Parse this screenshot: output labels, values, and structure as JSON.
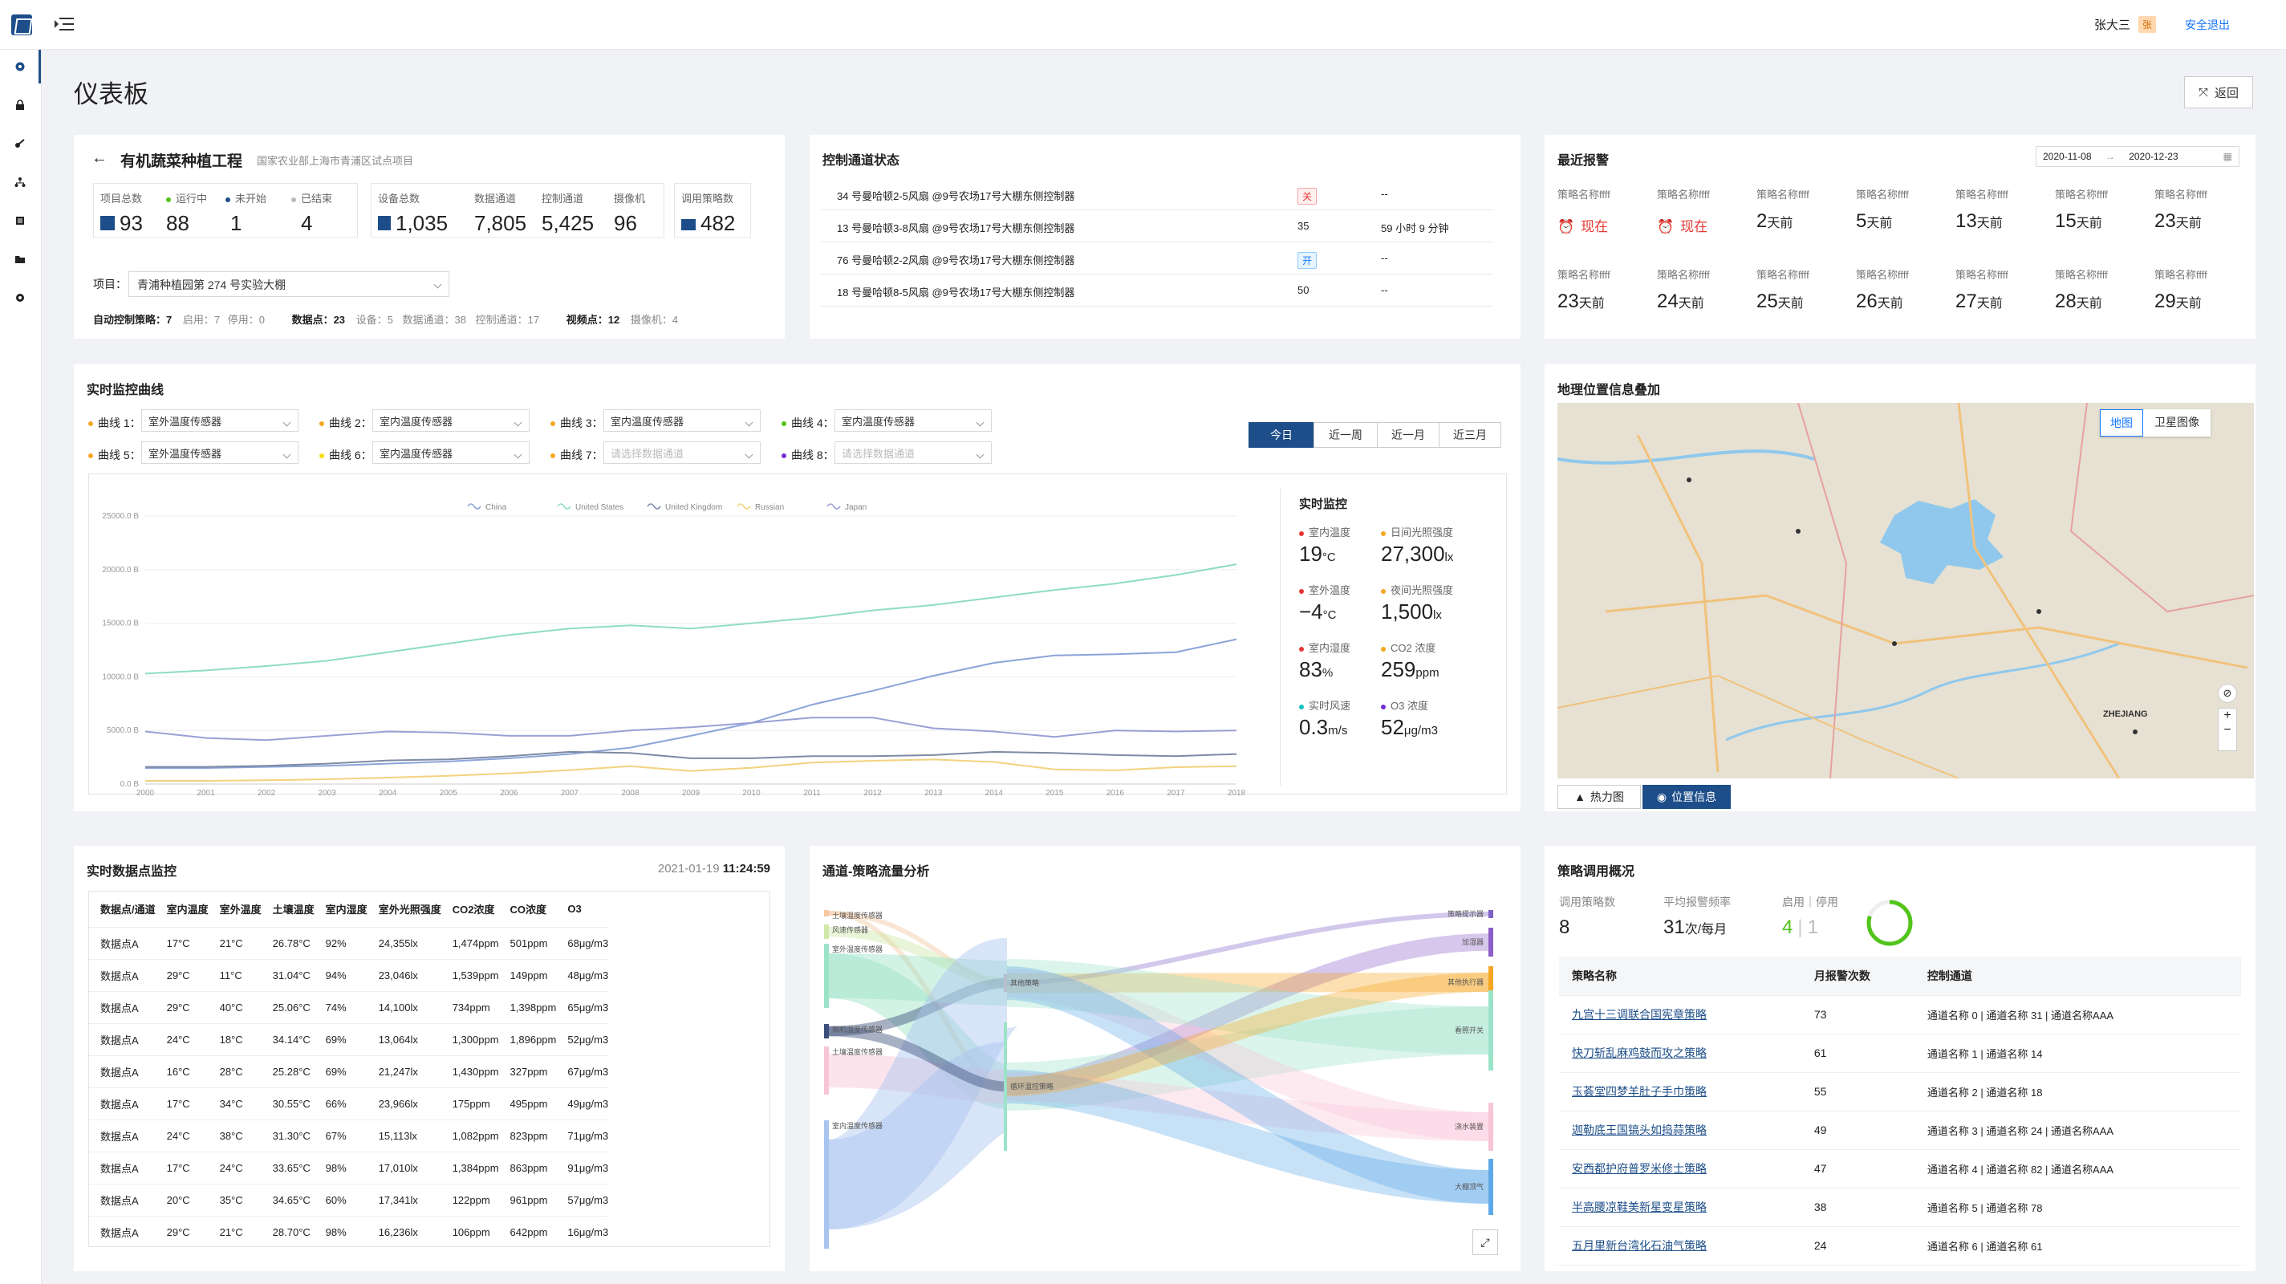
{
  "header": {
    "user_name": "张大三",
    "avatar": "张",
    "logout": "安全退出"
  },
  "sidebar": {
    "items": [
      "dashboard-icon",
      "lock-icon",
      "key-icon",
      "org-icon",
      "list-icon",
      "folder-icon",
      "gear-icon"
    ]
  },
  "page": {
    "title": "仪表板",
    "back_label": "返回"
  },
  "project": {
    "title": "有机蔬菜种植工程",
    "subtitle": "国家农业部上海市青浦区试点项目",
    "stats": {
      "total_label": "项目总数",
      "total": "93",
      "running_label": "运行中",
      "running": "88",
      "notstarted_label": "未开始",
      "notstarted": "1",
      "ended_label": "已结束",
      "ended": "4",
      "devices_label": "设备总数",
      "devices": "1,035",
      "data_ch_label": "数据通道",
      "data_ch": "7,805",
      "ctrl_ch_label": "控制通道",
      "ctrl_ch": "5,425",
      "camera_label": "摄像机",
      "camera": "96",
      "strategy_label": "调用策略数",
      "strategy": "482"
    },
    "project_select_label": "项目：",
    "project_select_value": "青浦种植园第 274 号实验大棚",
    "footer": {
      "auto_label": "自动控制策略：7",
      "enabled": "启用：7",
      "disabled": "停用：0",
      "points_label": "数据点：23",
      "devices": "设备：5",
      "data_ch": "数据通道：38",
      "ctrl_ch": "控制通道：17",
      "view_label": "视频点：12",
      "cameras": "摄像机：4"
    }
  },
  "control": {
    "title": "控制通道状态",
    "rows": [
      {
        "name": "34 号曼哈顿2-5风扇 @9号农场17号大棚东侧控制器",
        "status": "关",
        "status_type": "off",
        "extra": "--"
      },
      {
        "name": "13 号曼哈顿3-8风扇 @9号农场17号大棚东侧控制器",
        "status": "35",
        "status_type": "num",
        "extra": "59 小时 9 分钟"
      },
      {
        "name": "76 号曼哈顿2-2风扇 @9号农场17号大棚东侧控制器",
        "status": "开",
        "status_type": "on",
        "extra": "--"
      },
      {
        "name": "18 号曼哈顿8-5风扇 @9号农场17号大棚东侧控制器",
        "status": "50",
        "status_type": "num",
        "extra": "--"
      }
    ]
  },
  "alerts": {
    "title": "最近报警",
    "date_from": "2020-11-08",
    "date_arrow": "→",
    "date_to": "2020-12-23",
    "items": [
      {
        "name": "策略名称ffff",
        "num": "",
        "unit": "现在",
        "red": true
      },
      {
        "name": "策略名称ffff",
        "num": "",
        "unit": "现在",
        "red": true
      },
      {
        "name": "策略名称ffff",
        "num": "2",
        "unit": "天前",
        "red": false
      },
      {
        "name": "策略名称ffff",
        "num": "5",
        "unit": "天前",
        "red": false
      },
      {
        "name": "策略名称ffff",
        "num": "13",
        "unit": "天前",
        "red": false
      },
      {
        "name": "策略名称ffff",
        "num": "15",
        "unit": "天前",
        "red": false
      },
      {
        "name": "策略名称ffff",
        "num": "23",
        "unit": "天前",
        "red": false
      },
      {
        "name": "策略名称ffff",
        "num": "23",
        "unit": "天前",
        "red": false
      },
      {
        "name": "策略名称ffff",
        "num": "24",
        "unit": "天前",
        "red": false
      },
      {
        "name": "策略名称ffff",
        "num": "25",
        "unit": "天前",
        "red": false
      },
      {
        "name": "策略名称ffff",
        "num": "26",
        "unit": "天前",
        "red": false
      },
      {
        "name": "策略名称ffff",
        "num": "27",
        "unit": "天前",
        "red": false
      },
      {
        "name": "策略名称ffff",
        "num": "28",
        "unit": "天前",
        "red": false
      },
      {
        "name": "策略名称ffff",
        "num": "29",
        "unit": "天前",
        "red": false
      }
    ]
  },
  "monitor": {
    "title": "实时监控曲线",
    "curves": [
      {
        "label": "曲线 1：",
        "value": "室外温度传感器",
        "color": "#f5a623",
        "ph": false
      },
      {
        "label": "曲线 2：",
        "value": "室内温度传感器",
        "color": "#f5a623",
        "ph": false
      },
      {
        "label": "曲线 3：",
        "value": "室内温度传感器",
        "color": "#f5a623",
        "ph": false
      },
      {
        "label": "曲线 4：",
        "value": "室内温度传感器",
        "color": "#52c41a",
        "ph": false
      },
      {
        "label": "曲线 5：",
        "value": "室外温度传感器",
        "color": "#f5a623",
        "ph": false
      },
      {
        "label": "曲线 6：",
        "value": "室内温度传感器",
        "color": "#fadb14",
        "ph": false
      },
      {
        "label": "曲线 7：",
        "value": "请选择数据通道",
        "color": "#f5a623",
        "ph": true
      },
      {
        "label": "曲线 8：",
        "value": "请选择数据通道",
        "color": "#722ed1",
        "ph": true
      }
    ],
    "tabs": [
      "今日",
      "近一周",
      "近一月",
      "近三月"
    ],
    "realtime": {
      "title": "实时监控",
      "items": [
        {
          "label": "室内温度",
          "value": "19",
          "unit": "°C",
          "color": "#e53935"
        },
        {
          "label": "日间光照强度",
          "value": "27,300",
          "unit": "lx",
          "color": "#f5a623"
        },
        {
          "label": "室外温度",
          "value": "−4",
          "unit": "°C",
          "color": "#e53935"
        },
        {
          "label": "夜间光照强度",
          "value": "1,500",
          "unit": "lx",
          "color": "#f5a623"
        },
        {
          "label": "室内湿度",
          "value": "83",
          "unit": "%",
          "color": "#e53935"
        },
        {
          "label": "CO2 浓度",
          "value": "259",
          "unit": "ppm",
          "color": "#f5a623"
        },
        {
          "label": "实时风速",
          "value": "0.3",
          "unit": "m/s",
          "color": "#13c2c2"
        },
        {
          "label": "O3 浓度",
          "value": "52",
          "unit": "μg/m3",
          "color": "#722ed1"
        }
      ]
    }
  },
  "chart_data": {
    "type": "line",
    "x": [
      "2000",
      "2001",
      "2002",
      "2003",
      "2004",
      "2005",
      "2006",
      "2007",
      "2008",
      "2009",
      "2010",
      "2011",
      "2012",
      "2013",
      "2014",
      "2015",
      "2016",
      "2017",
      "2018"
    ],
    "ylim": [
      0,
      25000
    ],
    "yticks": [
      "0.0 B",
      "5000.0 B",
      "10000.0 B",
      "15000.0 B",
      "20000.0 B",
      "25000.0 B"
    ],
    "series": [
      {
        "name": "China",
        "color": "#8aa4d8",
        "values": [
          1500,
          1500,
          1600,
          1700,
          1900,
          2100,
          2400,
          2800,
          3400,
          4500,
          5700,
          7400,
          8700,
          10100,
          11300,
          12000,
          12100,
          12300,
          13500
        ]
      },
      {
        "name": "United States",
        "color": "#8fdcc4",
        "values": [
          10300,
          10600,
          11000,
          11500,
          12300,
          13100,
          13900,
          14500,
          14800,
          14500,
          15000,
          15500,
          16200,
          16700,
          17400,
          18100,
          18700,
          19500,
          20500
        ]
      },
      {
        "name": "United Kingdom",
        "color": "#7e8aa5",
        "values": [
          1600,
          1600,
          1700,
          1900,
          2200,
          2300,
          2600,
          3000,
          2900,
          2400,
          2400,
          2600,
          2600,
          2700,
          3000,
          2900,
          2700,
          2600,
          2800
        ]
      },
      {
        "name": "Russian",
        "color": "#f2d27e",
        "values": [
          300,
          300,
          350,
          450,
          600,
          770,
          990,
          1300,
          1660,
          1220,
          1520,
          2000,
          2170,
          2290,
          2060,
          1360,
          1280,
          1570,
          1660
        ]
      },
      {
        "name": "Japan",
        "color": "#9aa0d6",
        "values": [
          4900,
          4300,
          4100,
          4500,
          4900,
          4800,
          4500,
          4500,
          5000,
          5300,
          5700,
          6200,
          6200,
          5200,
          4900,
          4400,
          5000,
          4900,
          5000
        ]
      }
    ]
  },
  "geo": {
    "title": "地理位置信息叠加",
    "map_tab": "地图",
    "sat_tab": "卫星图像",
    "heat_btn": "热力图",
    "loc_btn": "位置信息",
    "place_label": "ZHEJIANG"
  },
  "datapoints": {
    "title": "实时数据点监控",
    "date": "2021-01-19",
    "time": "11:24:59",
    "headers": [
      "数据点/通道",
      "室内温度",
      "室外温度",
      "土壤温度",
      "室内湿度",
      "室外光照强度",
      "CO2浓度",
      "CO浓度",
      "O3"
    ],
    "rows": [
      [
        "数据点A",
        "17°C",
        "21°C",
        "26.78°C",
        "92%",
        "24,355lx",
        "1,474ppm",
        "501ppm",
        "68μg/m3"
      ],
      [
        "数据点A",
        "29°C",
        "11°C",
        "31.04°C",
        "94%",
        "23,046lx",
        "1,539ppm",
        "149ppm",
        "48μg/m3"
      ],
      [
        "数据点A",
        "29°C",
        "40°C",
        "25.06°C",
        "74%",
        "14,100lx",
        "734ppm",
        "1,398ppm",
        "65μg/m3"
      ],
      [
        "数据点A",
        "24°C",
        "18°C",
        "34.14°C",
        "69%",
        "13,064lx",
        "1,300ppm",
        "1,896ppm",
        "52μg/m3"
      ],
      [
        "数据点A",
        "16°C",
        "28°C",
        "25.28°C",
        "69%",
        "21,247lx",
        "1,430ppm",
        "327ppm",
        "67μg/m3"
      ],
      [
        "数据点A",
        "17°C",
        "34°C",
        "30.55°C",
        "66%",
        "23,966lx",
        "175ppm",
        "495ppm",
        "49μg/m3"
      ],
      [
        "数据点A",
        "24°C",
        "38°C",
        "31.30°C",
        "67%",
        "15,113lx",
        "1,082ppm",
        "823ppm",
        "71μg/m3"
      ],
      [
        "数据点A",
        "17°C",
        "24°C",
        "33.65°C",
        "98%",
        "17,010lx",
        "1,384ppm",
        "863ppm",
        "91μg/m3"
      ],
      [
        "数据点A",
        "20°C",
        "35°C",
        "34.65°C",
        "60%",
        "17,341lx",
        "122ppm",
        "961ppm",
        "57μg/m3"
      ],
      [
        "数据点A",
        "29°C",
        "21°C",
        "28.70°C",
        "98%",
        "16,236lx",
        "106ppm",
        "642ppm",
        "16μg/m3"
      ]
    ]
  },
  "sankey": {
    "title": "通道-策略流量分析",
    "left_nodes": [
      "土壤温度传感器",
      "风速传感器",
      "室外温度传感器",
      "相机温度传感器",
      "土壤温度传感器",
      "室内温度传感器"
    ],
    "mid_nodes": [
      "其他策略",
      "循环温控策略"
    ],
    "right_nodes": [
      "策略提示器",
      "加湿器",
      "其他执行器",
      "看照开关",
      "浇水装置",
      "大棚顶气"
    ]
  },
  "strategy": {
    "title": "策略调用概况",
    "count_label": "调用策略数",
    "count": "8",
    "freq_label": "平均报警频率",
    "freq": "31",
    "freq_unit": "次/每月",
    "status_label": "启用｜停用",
    "enabled": "4",
    "sep": "|",
    "disabled": "1",
    "progress": 0.8,
    "headers": [
      "策略名称",
      "月报警次数",
      "控制通道"
    ],
    "rows": [
      [
        "九宫十三调联合国宪章策略",
        "73",
        "通道名称 0 | 通道名称 31 | 通道名称AAA"
      ],
      [
        "快刀斩乱麻鸡鼓而攻之策略",
        "61",
        "通道名称 1 | 通道名称 14"
      ],
      [
        "玉荟堂四梦羊肚子手巾策略",
        "55",
        "通道名称 2 | 通道名称 18"
      ],
      [
        "迦勒底王国镐头如捣蒜策略",
        "49",
        "通道名称 3 | 通道名称 24 | 通道名称AAA"
      ],
      [
        "安西都护府普罗米修士策略",
        "47",
        "通道名称 4 | 通道名称 82 | 通道名称AAA"
      ],
      [
        "半高腰凉鞋美新星变星策略",
        "38",
        "通道名称 5 | 通道名称 78"
      ],
      [
        "五月里新台湾化石油气策略",
        "24",
        "通道名称 6 | 通道名称 61"
      ]
    ]
  }
}
